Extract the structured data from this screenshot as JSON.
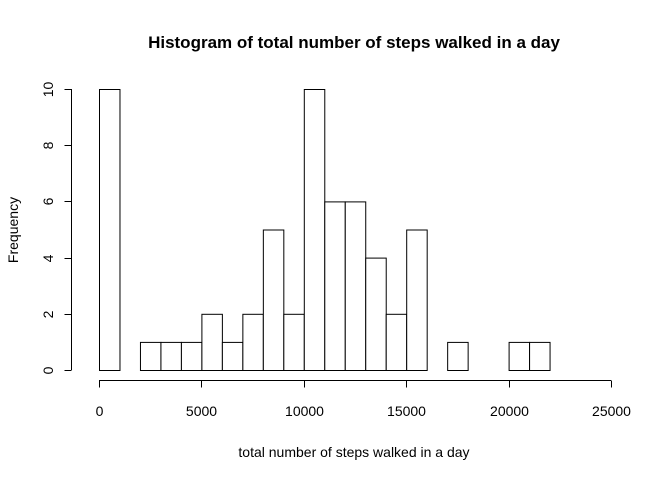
{
  "chart_data": {
    "type": "bar",
    "title": "Histogram of total number of steps walked in a day",
    "xlabel": "total number of steps walked in a day",
    "ylabel": "Frequency",
    "bin_width": 1000,
    "bins": [
      {
        "x0": 0,
        "x1": 1000,
        "count": 10
      },
      {
        "x0": 1000,
        "x1": 2000,
        "count": 0
      },
      {
        "x0": 2000,
        "x1": 3000,
        "count": 1
      },
      {
        "x0": 3000,
        "x1": 4000,
        "count": 1
      },
      {
        "x0": 4000,
        "x1": 5000,
        "count": 1
      },
      {
        "x0": 5000,
        "x1": 6000,
        "count": 2
      },
      {
        "x0": 6000,
        "x1": 7000,
        "count": 1
      },
      {
        "x0": 7000,
        "x1": 8000,
        "count": 2
      },
      {
        "x0": 8000,
        "x1": 9000,
        "count": 5
      },
      {
        "x0": 9000,
        "x1": 10000,
        "count": 2
      },
      {
        "x0": 10000,
        "x1": 11000,
        "count": 10
      },
      {
        "x0": 11000,
        "x1": 12000,
        "count": 6
      },
      {
        "x0": 12000,
        "x1": 13000,
        "count": 6
      },
      {
        "x0": 13000,
        "x1": 14000,
        "count": 4
      },
      {
        "x0": 14000,
        "x1": 15000,
        "count": 2
      },
      {
        "x0": 15000,
        "x1": 16000,
        "count": 5
      },
      {
        "x0": 16000,
        "x1": 17000,
        "count": 0
      },
      {
        "x0": 17000,
        "x1": 18000,
        "count": 1
      },
      {
        "x0": 18000,
        "x1": 19000,
        "count": 0
      },
      {
        "x0": 19000,
        "x1": 20000,
        "count": 0
      },
      {
        "x0": 20000,
        "x1": 21000,
        "count": 1
      },
      {
        "x0": 21000,
        "x1": 22000,
        "count": 1
      },
      {
        "x0": 22000,
        "x1": 23000,
        "count": 0
      },
      {
        "x0": 23000,
        "x1": 24000,
        "count": 0
      },
      {
        "x0": 24000,
        "x1": 25000,
        "count": 0
      }
    ],
    "xlim": [
      0,
      25000
    ],
    "ylim": [
      0,
      10
    ],
    "x_ticks": [
      0,
      5000,
      10000,
      15000,
      20000,
      25000
    ],
    "x_tick_labels": [
      "0",
      "5000",
      "10000",
      "15000",
      "20000",
      "25000"
    ],
    "y_ticks": [
      0,
      2,
      4,
      6,
      8,
      10
    ],
    "y_tick_labels": [
      "0",
      "2",
      "4",
      "6",
      "8",
      "10"
    ],
    "grid": false,
    "bar_fill": "#ffffff",
    "bar_stroke": "#000000"
  }
}
